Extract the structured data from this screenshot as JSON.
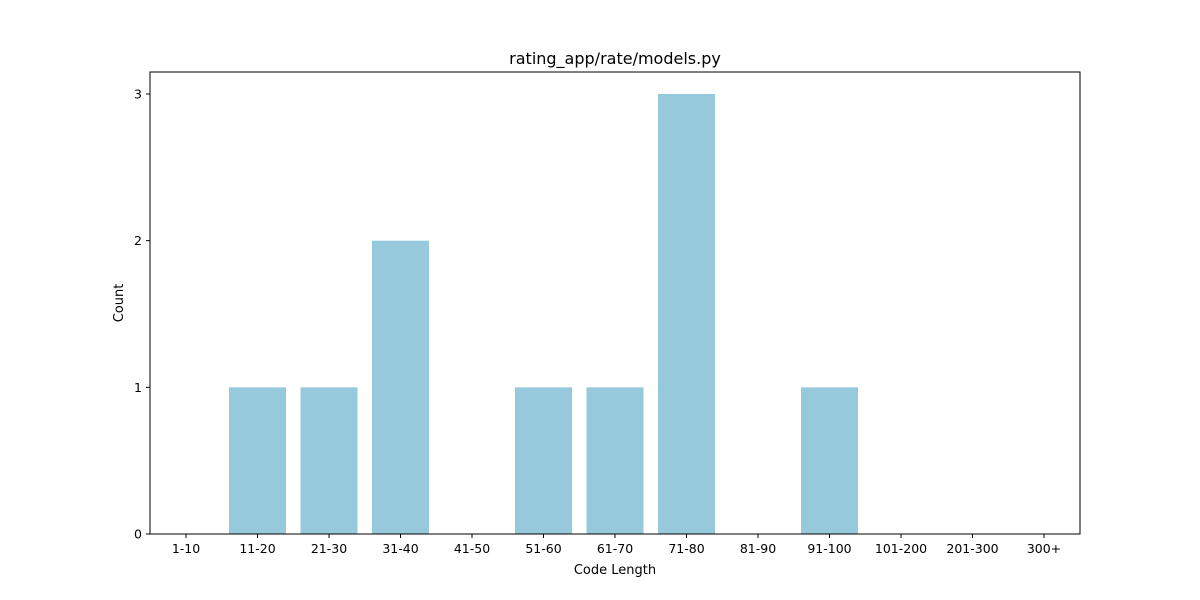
{
  "chart_data": {
    "type": "bar",
    "title": "rating_app/rate/models.py",
    "xlabel": "Code Length",
    "ylabel": "Count",
    "categories": [
      "1-10",
      "11-20",
      "21-30",
      "31-40",
      "41-50",
      "51-60",
      "61-70",
      "71-80",
      "81-90",
      "91-100",
      "101-200",
      "201-300",
      "300+"
    ],
    "values": [
      0,
      1,
      1,
      2,
      0,
      1,
      1,
      3,
      0,
      1,
      0,
      0,
      0
    ],
    "yticks": [
      0,
      1,
      2,
      3
    ],
    "ylim": [
      0,
      3.15
    ],
    "grid": false,
    "bar_color": "#96c9dc"
  }
}
